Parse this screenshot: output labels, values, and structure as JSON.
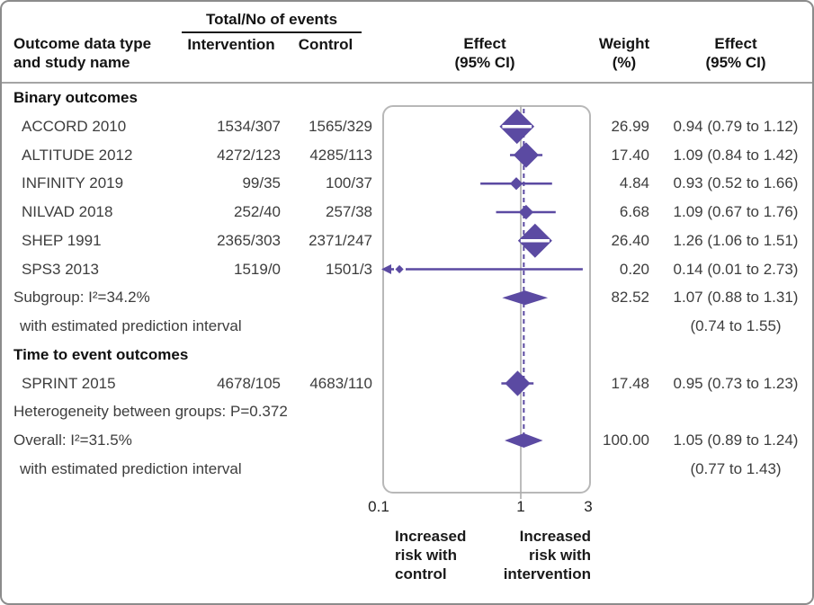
{
  "header": {
    "events_group": "Total/No of events",
    "col_outcome": [
      "Outcome data type",
      "and study name"
    ],
    "col_intervention": "Intervention",
    "col_control": "Control",
    "col_effect_plot": [
      "Effect",
      "(95% CI)"
    ],
    "col_weight": [
      "Weight",
      "(%)"
    ],
    "col_effect_text": [
      "Effect",
      "(95% CI)"
    ]
  },
  "axis": {
    "tick_labels": [
      "0.1",
      "1",
      "3"
    ],
    "left_note": [
      "Increased",
      "risk with",
      "control"
    ],
    "right_note": [
      "Increased",
      "risk with",
      "intervention"
    ]
  },
  "colors": {
    "marker": "#5b4aa2",
    "null_line": "#ababab",
    "panel_border": "#b8b8b8",
    "stripe": "#ffffff"
  },
  "chart_data": {
    "type": "forest",
    "x_scale": "log10",
    "x_ticks": [
      0.1,
      1,
      3
    ],
    "null_line": 1,
    "overall_dashed_line": 1.05,
    "rows": [
      {
        "kind": "section",
        "label": "Binary outcomes"
      },
      {
        "kind": "study",
        "label": "ACCORD 2010",
        "intervention": "1534/307",
        "control": "1565/329",
        "weight": "26.99",
        "effect": "0.94 (0.79 to 1.12)",
        "est": 0.94,
        "lo": 0.79,
        "hi": 1.12,
        "w": 26.99
      },
      {
        "kind": "study",
        "label": "ALTITUDE 2012",
        "intervention": "4272/123",
        "control": "4285/113",
        "weight": "17.40",
        "effect": "1.09 (0.84 to 1.42)",
        "est": 1.09,
        "lo": 0.84,
        "hi": 1.42,
        "w": 17.4
      },
      {
        "kind": "study",
        "label": "INFINITY 2019",
        "intervention": "99/35",
        "control": "100/37",
        "weight": "4.84",
        "effect": "0.93 (0.52 to 1.66)",
        "est": 0.93,
        "lo": 0.52,
        "hi": 1.66,
        "w": 4.84
      },
      {
        "kind": "study",
        "label": "NILVAD 2018",
        "intervention": "252/40",
        "control": "257/38",
        "weight": "6.68",
        "effect": "1.09 (0.67 to 1.76)",
        "est": 1.09,
        "lo": 0.67,
        "hi": 1.76,
        "w": 6.68
      },
      {
        "kind": "study",
        "label": "SHEP 1991",
        "intervention": "2365/303",
        "control": "2371/247",
        "weight": "26.40",
        "effect": "1.26 (1.06 to 1.51)",
        "est": 1.26,
        "lo": 1.06,
        "hi": 1.51,
        "w": 26.4
      },
      {
        "kind": "study",
        "label": "SPS3 2013",
        "intervention": "1519/0",
        "control": "1501/3",
        "weight": "0.20",
        "effect": "0.14 (0.01 to 2.73)",
        "est": 0.14,
        "lo": 0.01,
        "hi": 2.73,
        "w": 0.2,
        "arrow_lo": true
      },
      {
        "kind": "summary",
        "label": "Subgroup: I²=34.2%",
        "weight": "82.52",
        "effect": "1.07 (0.88 to 1.31)",
        "est": 1.07,
        "lo": 0.88,
        "hi": 1.31,
        "di_lo": 0.74,
        "di_hi": 1.55
      },
      {
        "kind": "note",
        "label": "with estimated prediction interval",
        "effect": "(0.74 to 1.55)"
      },
      {
        "kind": "section",
        "label": "Time to event outcomes"
      },
      {
        "kind": "study",
        "label": "SPRINT 2015",
        "intervention": "4678/105",
        "control": "4683/110",
        "weight": "17.48",
        "effect": "0.95 (0.73 to 1.23)",
        "est": 0.95,
        "lo": 0.73,
        "hi": 1.23,
        "w": 17.48
      },
      {
        "kind": "stat",
        "label": "Heterogeneity between groups: P=0.372"
      },
      {
        "kind": "summary",
        "label": "Overall: I²=31.5%",
        "weight": "100.00",
        "effect": "1.05 (0.89 to 1.24)",
        "est": 1.05,
        "lo": 0.89,
        "hi": 1.24,
        "di_lo": 0.77,
        "di_hi": 1.43
      },
      {
        "kind": "note",
        "label": "with estimated prediction interval",
        "effect": "(0.77 to 1.43)"
      }
    ]
  }
}
